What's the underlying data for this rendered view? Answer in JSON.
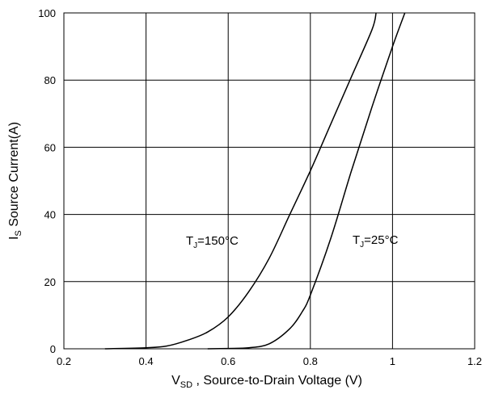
{
  "chart_data": {
    "type": "line",
    "xlabel": {
      "main": "V",
      "sub": "SD",
      "rest": " , Source-to-Drain Voltage (V)"
    },
    "ylabel": {
      "main": "I",
      "sub": "S",
      "rest": " Source Current(A)"
    },
    "xlim": [
      0.2,
      1.2
    ],
    "ylim": [
      0,
      100
    ],
    "x_ticks": [
      0.2,
      0.4,
      0.6,
      0.8,
      1,
      1.2
    ],
    "x_tick_labels": [
      "0.2",
      "0.4",
      "0.6",
      "0.8",
      "1",
      "1.2"
    ],
    "y_ticks": [
      0,
      20,
      40,
      60,
      80,
      100
    ],
    "y_tick_labels": [
      "0",
      "20",
      "40",
      "60",
      "80",
      "100"
    ],
    "grid": true,
    "series": [
      {
        "name": "TJ=150°C",
        "label": {
          "pre": "T",
          "sub": "J",
          "post": "=150°C"
        },
        "x": [
          0.3,
          0.4,
          0.45,
          0.5,
          0.55,
          0.6,
          0.65,
          0.7,
          0.75,
          0.8,
          0.85,
          0.9,
          0.95,
          0.96
        ],
        "y": [
          0,
          0.3,
          0.8,
          2.5,
          5,
          9.5,
          17,
          27,
          40,
          53,
          67,
          81,
          95,
          100
        ]
      },
      {
        "name": "TJ=25°C",
        "label": {
          "pre": "T",
          "sub": "J",
          "post": "=25°C"
        },
        "x": [
          0.55,
          0.6,
          0.65,
          0.7,
          0.75,
          0.78,
          0.8,
          0.85,
          0.9,
          0.95,
          1.0,
          1.03
        ],
        "y": [
          0,
          0.1,
          0.3,
          1.5,
          6,
          11,
          16,
          33,
          53,
          72,
          90,
          100
        ]
      }
    ]
  }
}
